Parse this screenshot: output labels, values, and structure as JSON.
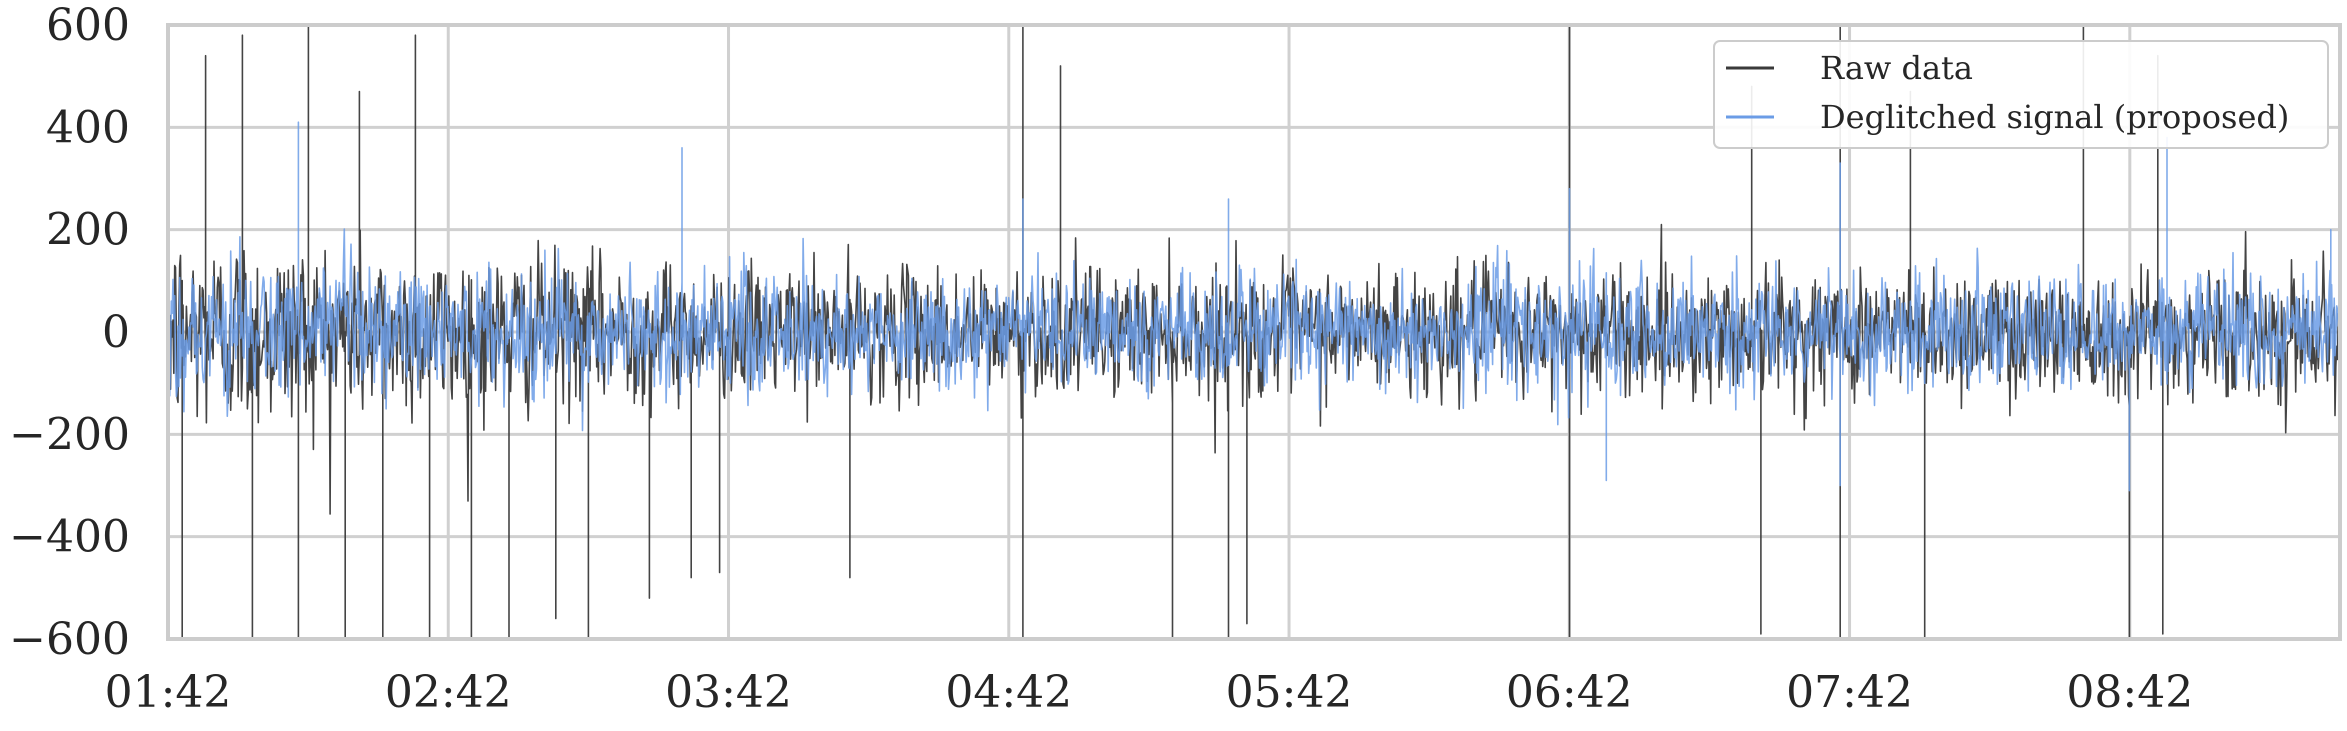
{
  "chart_data": {
    "type": "line",
    "title": "",
    "xlabel": "",
    "ylabel": "",
    "ylim": [
      -600,
      600
    ],
    "y_ticks": [
      -600,
      -400,
      -200,
      0,
      200,
      400,
      600
    ],
    "y_tick_labels": [
      "−600",
      "−400",
      "−200",
      "0",
      "200",
      "400",
      "600"
    ],
    "x_range": [
      "01:42",
      "09:27"
    ],
    "x_ticks": [
      "01:42",
      "02:42",
      "03:42",
      "04:42",
      "05:42",
      "06:42",
      "07:42",
      "08:42"
    ],
    "grid": true,
    "legend_position": "top-right",
    "series": [
      {
        "name": "Raw data",
        "color": "#3a3a3a",
        "noise_std": [
          [
            0,
            110
          ],
          [
            120,
            68
          ]
        ],
        "spikes": [
          [
            "01:50",
            540
          ],
          [
            "01:58",
            580
          ],
          [
            "02:12",
            600
          ],
          [
            "02:23",
            470
          ],
          [
            "02:35",
            580
          ],
          [
            "01:45",
            -600
          ],
          [
            "02:00",
            -600
          ],
          [
            "02:10",
            -600
          ],
          [
            "02:20",
            -600
          ],
          [
            "02:28",
            -600
          ],
          [
            "02:38",
            -600
          ],
          [
            "02:47",
            -600
          ],
          [
            "02:55",
            -600
          ],
          [
            "03:05",
            -560
          ],
          [
            "03:12",
            -600
          ],
          [
            "03:25",
            -520
          ],
          [
            "03:34",
            -480
          ],
          [
            "03:40",
            -470
          ],
          [
            "04:08",
            -480
          ],
          [
            "04:45",
            600
          ],
          [
            "04:45",
            -600
          ],
          [
            "04:53",
            520
          ],
          [
            "05:17",
            -600
          ],
          [
            "05:29",
            -600
          ],
          [
            "05:33",
            -570
          ],
          [
            "06:42",
            600
          ],
          [
            "06:42",
            -600
          ],
          [
            "07:21",
            480
          ],
          [
            "07:23",
            -590
          ],
          [
            "07:40",
            600
          ],
          [
            "07:40",
            -600
          ],
          [
            "07:55",
            470
          ],
          [
            "07:58",
            -600
          ],
          [
            "08:32",
            600
          ],
          [
            "08:42",
            -600
          ],
          [
            "08:48",
            540
          ],
          [
            "08:49",
            -590
          ]
        ]
      },
      {
        "name": "Deglitched signal (proposed)",
        "color": "#6b9ce6",
        "noise_std": [
          [
            0,
            80
          ],
          [
            120,
            62
          ]
        ],
        "spikes": [
          [
            "02:10",
            410
          ],
          [
            "03:32",
            360
          ],
          [
            "04:45",
            260
          ],
          [
            "05:29",
            260
          ],
          [
            "06:42",
            280
          ],
          [
            "07:40",
            330
          ],
          [
            "08:50",
            380
          ],
          [
            "09:25",
            200
          ],
          [
            "06:50",
            -290
          ],
          [
            "07:40",
            -300
          ],
          [
            "08:42",
            -310
          ]
        ]
      }
    ]
  }
}
